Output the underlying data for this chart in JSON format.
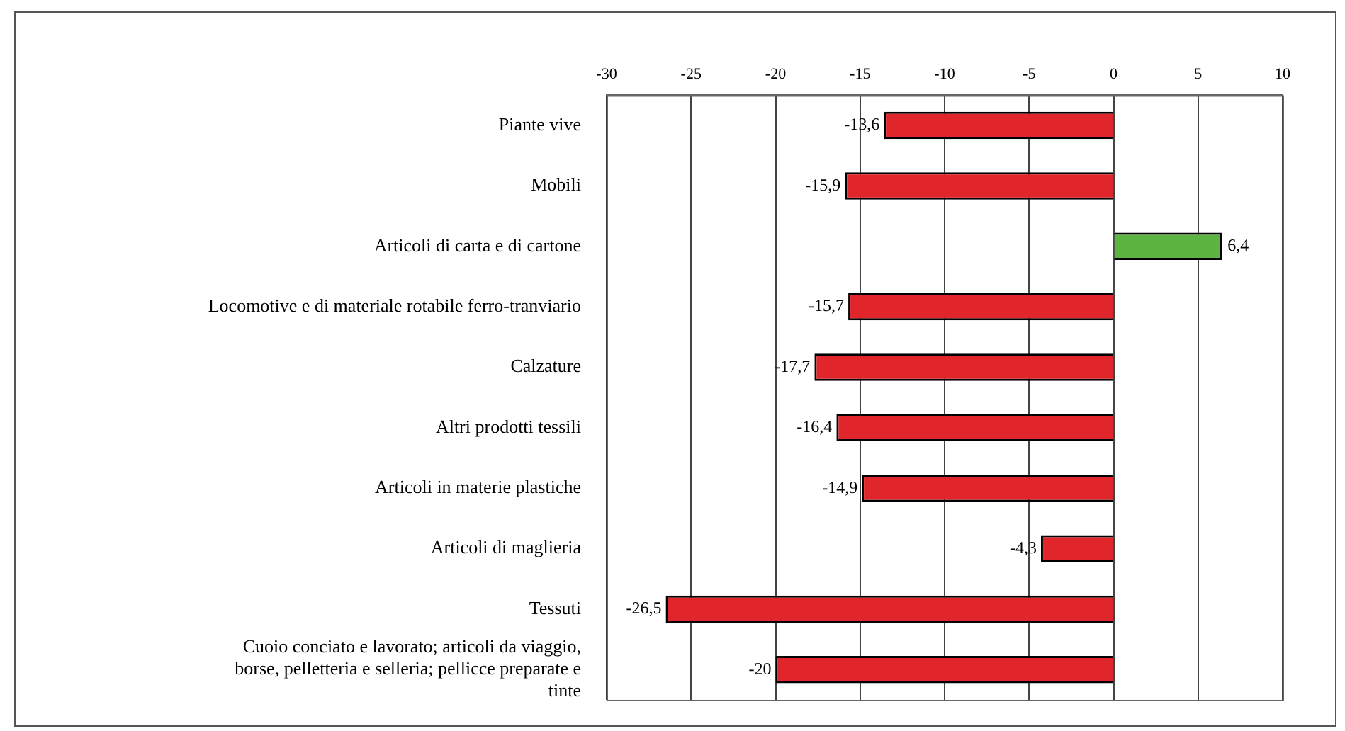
{
  "chart_data": {
    "type": "bar",
    "orientation": "horizontal",
    "categories": [
      "Piante vive",
      "Mobili",
      "Articoli di carta e di cartone",
      "Locomotive e di materiale rotabile ferro-tranviario",
      "Calzature",
      "Altri prodotti tessili",
      "Articoli in materie plastiche",
      "Articoli di maglieria",
      "Tessuti",
      "Cuoio conciato e lavorato; articoli da viaggio, borse, pelletteria e selleria; pellicce preparate e tinte"
    ],
    "values": [
      -13.6,
      -15.9,
      6.4,
      -15.7,
      -17.7,
      -16.4,
      -14.9,
      -4.3,
      -26.5,
      -20
    ],
    "colors": [
      "#e0262b",
      "#e0262b",
      "#5cb443",
      "#e0262b",
      "#e0262b",
      "#e0262b",
      "#e0262b",
      "#e0262b",
      "#e0262b",
      "#e0262b"
    ],
    "value_labels": [
      "-13,6",
      "-15,9",
      "6,4",
      "-15,7",
      "-17,7",
      "-16,4",
      "-14,9",
      "-4,3",
      "-26,5",
      "-20"
    ],
    "xlim": [
      -30,
      10
    ],
    "xticks": [
      -30,
      -25,
      -20,
      -15,
      -10,
      -5,
      0,
      5,
      10
    ],
    "grid": "x",
    "legend": false
  }
}
